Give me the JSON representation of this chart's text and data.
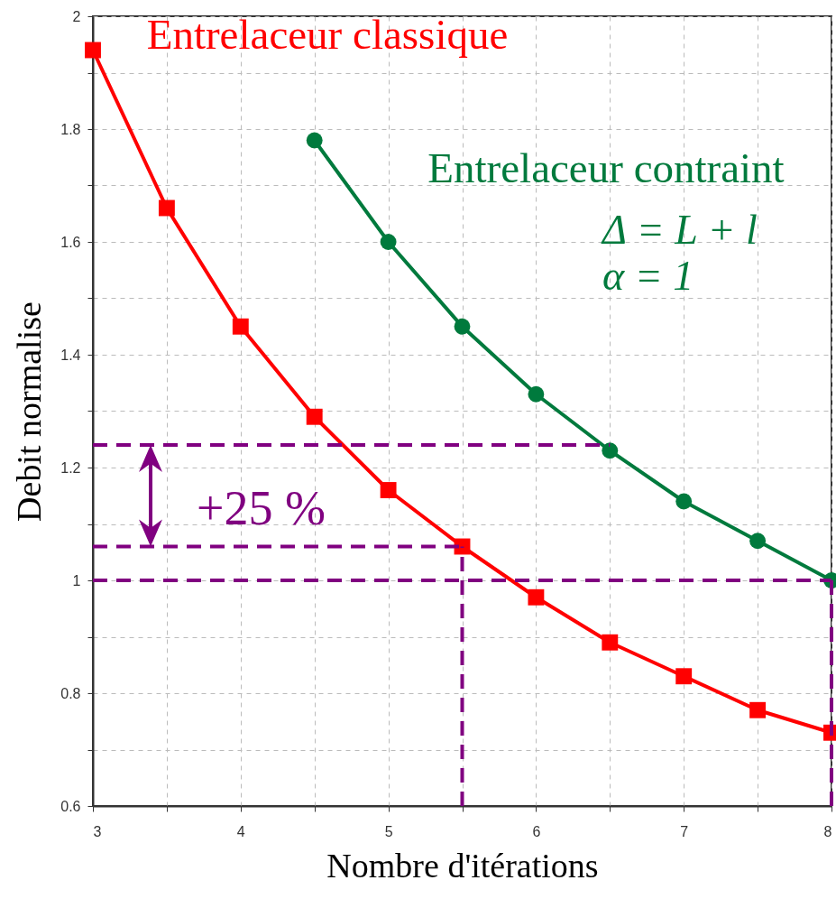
{
  "chart_data": {
    "type": "line",
    "xlabel": "Nombre d'itérations",
    "ylabel": "Debit normalise",
    "xlim": [
      3,
      8
    ],
    "ylim": [
      0.6,
      2
    ],
    "xticks": [
      3,
      {
        "value": 3.5,
        "label": null
      },
      4,
      {
        "value": 4.5,
        "label": null
      },
      5,
      {
        "value": 5.5,
        "label": null
      },
      6,
      {
        "value": 6.5,
        "label": null
      },
      7,
      {
        "value": 7.5,
        "label": null
      },
      8
    ],
    "yticks": [
      0.6,
      {
        "value": 0.7,
        "label": null
      },
      0.8,
      {
        "value": 0.9,
        "label": null
      },
      1,
      {
        "value": 1.1,
        "label": null
      },
      1.2,
      {
        "value": 1.3,
        "label": null
      },
      1.4,
      {
        "value": 1.5,
        "label": null
      },
      1.6,
      {
        "value": 1.7,
        "label": null
      },
      1.8,
      {
        "value": 1.9,
        "label": null
      },
      2
    ],
    "grid": true,
    "annotations": [
      "+25 %",
      "Δ = L + l",
      "α  = 1"
    ],
    "series": [
      {
        "name": "Entrelaceur classique",
        "color": "#ff0000",
        "marker": "square",
        "x": [
          3,
          3.5,
          4,
          4.5,
          5,
          5.5,
          6,
          6.5,
          7,
          7.5,
          8
        ],
        "values": [
          1.94,
          1.66,
          1.45,
          1.29,
          1.16,
          1.06,
          0.97,
          0.89,
          0.83,
          0.77,
          0.73
        ]
      },
      {
        "name": "Entrelaceur contraint",
        "color": "#007a3d",
        "marker": "circle",
        "x": [
          4.5,
          5,
          5.5,
          6,
          6.5,
          7,
          7.5,
          8
        ],
        "values": [
          1.78,
          1.6,
          1.45,
          1.33,
          1.23,
          1.14,
          1.07,
          1.0
        ]
      },
      {
        "color": "#800080",
        "marker": "none",
        "line_style": "dashed",
        "x": [
          3,
          6.5
        ],
        "values": [
          1.24,
          1.24
        ]
      },
      {
        "color": "#800080",
        "marker": "none",
        "line_style": "dashed",
        "x": [
          3,
          5.5
        ],
        "values": [
          1.06,
          1.06
        ]
      },
      {
        "color": "#800080",
        "marker": "none",
        "line_style": "dashed",
        "x": [
          3,
          8
        ],
        "values": [
          1.0,
          1.0
        ]
      },
      {
        "color": "#800080",
        "marker": "none",
        "line_style": "dashed",
        "x": [
          5.5,
          5.5
        ],
        "values": [
          0.6,
          1.06
        ]
      },
      {
        "color": "#800080",
        "marker": "none",
        "line_style": "dashed",
        "x": [
          8,
          8
        ],
        "values": [
          0.6,
          1.0
        ]
      }
    ]
  }
}
